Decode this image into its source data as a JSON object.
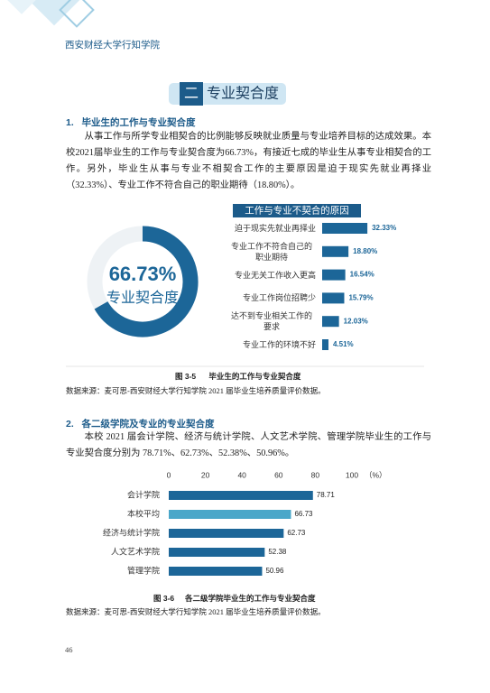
{
  "header": {
    "school": "西安财经大学行知学院"
  },
  "section": {
    "number": "二",
    "title": "专业契合度"
  },
  "subsection1": {
    "number": "1.",
    "title": "毕业生的工作与专业契合度",
    "paragraph": "从事工作与所学专业相契合的比例能够反映就业质量与专业培养目标的达成效果。本校2021届毕业生的工作与专业契合度为66.73%，有接近七成的毕业生从事专业相契合的工作。另外，毕业生从事与专业不相契合工作的主要原因是迫于现实先就业再择业（32.33%）、专业工作不符合自己的职业期待（18.80%）。"
  },
  "figure1": {
    "donut": {
      "value": 66.73,
      "value_label": "66.73%",
      "label": "专业契合度",
      "color": "#1c6698"
    },
    "reasons": {
      "title": "工作与专业不契合的原因",
      "color": "#1c6698",
      "categories": [
        "迫于现实先就业再择业",
        "专业工作不符合自己的职业期待",
        "专业无关工作收入更高",
        "专业工作岗位招聘少",
        "达不到专业相关工作的要求",
        "专业工作的环境不好"
      ],
      "values": [
        32.33,
        18.8,
        16.54,
        15.79,
        12.03,
        4.51
      ],
      "value_labels": [
        "32.33%",
        "18.80%",
        "16.54%",
        "15.79%",
        "12.03%",
        "4.51%"
      ]
    },
    "caption": {
      "number": "图 3-5",
      "title": "毕业生的工作与专业契合度"
    },
    "source": "数据来源：麦可思-西安财经大学行知学院 2021 届毕业生培养质量评价数据。"
  },
  "subsection2": {
    "number": "2.",
    "title": "各二级学院及专业的专业契合度",
    "paragraph": "本校 2021 届会计学院、经济与统计学院、人文艺术学院、管理学院毕业生的工作与专业契合度分别为 78.71%、62.73%、52.38%、50.96%。"
  },
  "figure2": {
    "type": "bar",
    "unit": "（%）",
    "xlim": [
      0,
      100
    ],
    "xticks": [
      0,
      20,
      40,
      60,
      80,
      100
    ],
    "categories": [
      "会计学院",
      "本校平均",
      "经济与统计学院",
      "人文艺术学院",
      "管理学院"
    ],
    "values": [
      78.71,
      66.73,
      62.73,
      52.38,
      50.96
    ],
    "colors": [
      "#1c6698",
      "#4aa7c9",
      "#1c6698",
      "#1c6698",
      "#1c6698"
    ],
    "caption": {
      "number": "图 3-6",
      "title": "各二级学院毕业生的工作与专业契合度"
    },
    "source": "数据来源：麦可思-西安财经大学行知学院 2021 届毕业生培养质量评价数据。"
  },
  "page_number": "46"
}
